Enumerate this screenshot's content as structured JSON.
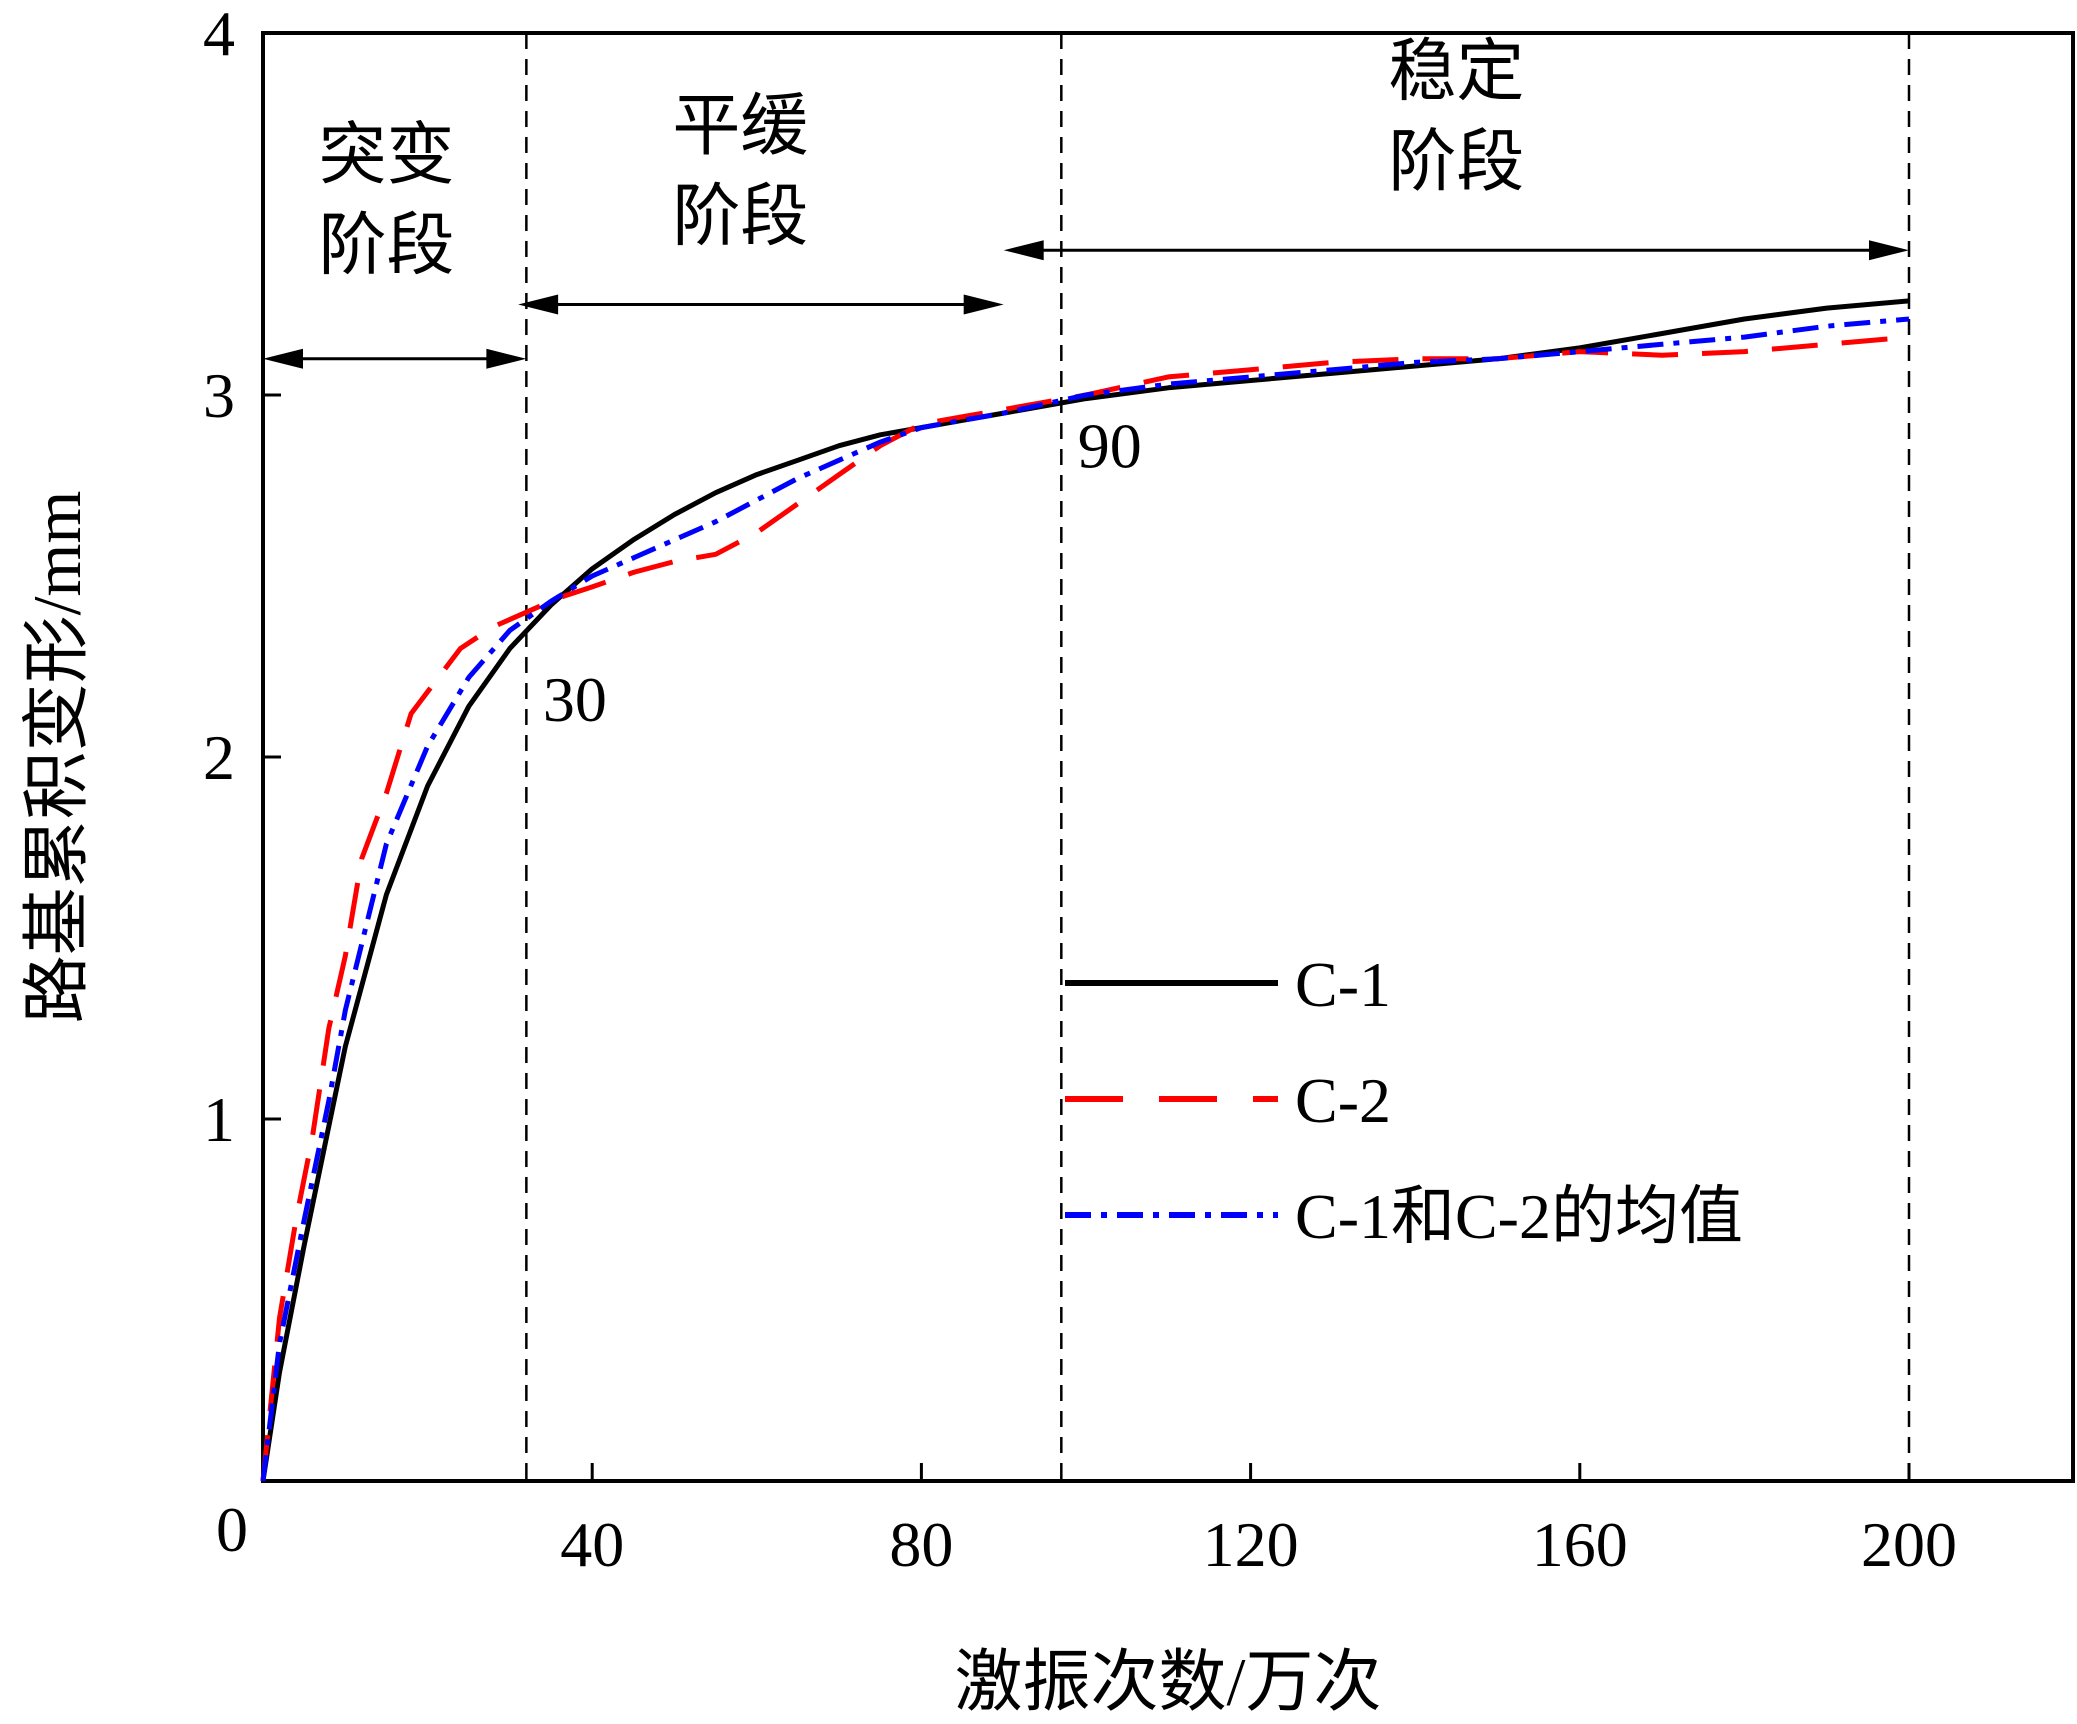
{
  "chart_data": {
    "type": "line",
    "xlabel": "激振次数/万次",
    "ylabel": "路基累积变形/mm",
    "xlim": [
      0,
      220
    ],
    "ylim": [
      0,
      4
    ],
    "xticks": [
      40,
      80,
      120,
      160,
      200
    ],
    "yticks": [
      1,
      2,
      3,
      4
    ],
    "origin_label": "0",
    "grid": false,
    "legend_position": "center-right",
    "series": [
      {
        "name": "C-1",
        "color": "#000000",
        "style": "solid",
        "x": [
          0,
          2,
          5,
          8,
          10,
          15,
          20,
          25,
          30,
          35,
          40,
          45,
          50,
          55,
          60,
          65,
          70,
          75,
          80,
          85,
          90,
          100,
          110,
          120,
          130,
          140,
          150,
          160,
          170,
          180,
          190,
          200
        ],
        "y": [
          0,
          0.3,
          0.65,
          0.98,
          1.2,
          1.62,
          1.92,
          2.14,
          2.3,
          2.42,
          2.52,
          2.6,
          2.67,
          2.73,
          2.78,
          2.82,
          2.86,
          2.89,
          2.91,
          2.93,
          2.95,
          2.99,
          3.02,
          3.04,
          3.06,
          3.08,
          3.1,
          3.13,
          3.17,
          3.21,
          3.24,
          3.26
        ]
      },
      {
        "name": "C-2",
        "color": "#ff0000",
        "style": "dashed",
        "x": [
          0,
          2,
          4,
          6,
          8,
          10,
          12,
          15,
          18,
          20,
          24,
          28,
          32,
          36,
          40,
          45,
          50,
          55,
          60,
          65,
          70,
          75,
          80,
          85,
          90,
          95,
          100,
          110,
          120,
          130,
          140,
          150,
          160,
          170,
          180,
          190,
          200
        ],
        "y": [
          0,
          0.45,
          0.72,
          0.95,
          1.25,
          1.45,
          1.72,
          1.9,
          2.12,
          2.18,
          2.3,
          2.36,
          2.4,
          2.44,
          2.47,
          2.51,
          2.54,
          2.56,
          2.62,
          2.7,
          2.78,
          2.86,
          2.92,
          2.94,
          2.96,
          2.98,
          3.0,
          3.05,
          3.07,
          3.09,
          3.1,
          3.1,
          3.12,
          3.11,
          3.12,
          3.14,
          3.16
        ]
      },
      {
        "name": "C-1和C-2的均值",
        "color": "#0000ff",
        "style": "dashdot",
        "x": [
          0,
          2,
          5,
          8,
          10,
          15,
          20,
          25,
          30,
          35,
          40,
          45,
          50,
          55,
          60,
          65,
          70,
          75,
          80,
          85,
          90,
          100,
          110,
          120,
          130,
          140,
          150,
          160,
          170,
          180,
          190,
          200
        ],
        "y": [
          0,
          0.38,
          0.72,
          1.05,
          1.3,
          1.76,
          2.03,
          2.22,
          2.35,
          2.43,
          2.5,
          2.55,
          2.6,
          2.65,
          2.71,
          2.77,
          2.82,
          2.87,
          2.91,
          2.93,
          2.95,
          3.0,
          3.03,
          3.05,
          3.07,
          3.09,
          3.1,
          3.12,
          3.14,
          3.16,
          3.19,
          3.21
        ]
      }
    ],
    "vlines": [
      32,
      97,
      200
    ],
    "phase_arrows": [
      {
        "from": 0,
        "to": 32,
        "y": 3.1
      },
      {
        "from": 31,
        "to": 90,
        "y": 3.25
      },
      {
        "from": 90,
        "to": 200,
        "y": 3.4
      }
    ],
    "phase_labels": [
      {
        "line1": "突变",
        "line2": "阶段",
        "x": 15,
        "y1": 3.6,
        "y2": 3.35
      },
      {
        "line1": "平缓",
        "line2": "阶段",
        "x": 58,
        "y1": 3.68,
        "y2": 3.43
      },
      {
        "line1": "稳定",
        "line2": "阶段",
        "x": 145,
        "y1": 3.83,
        "y2": 3.58
      }
    ],
    "annotations": [
      {
        "text": "30",
        "x": 34,
        "y": 2.1
      },
      {
        "text": "90",
        "x": 99,
        "y": 2.8
      }
    ]
  }
}
